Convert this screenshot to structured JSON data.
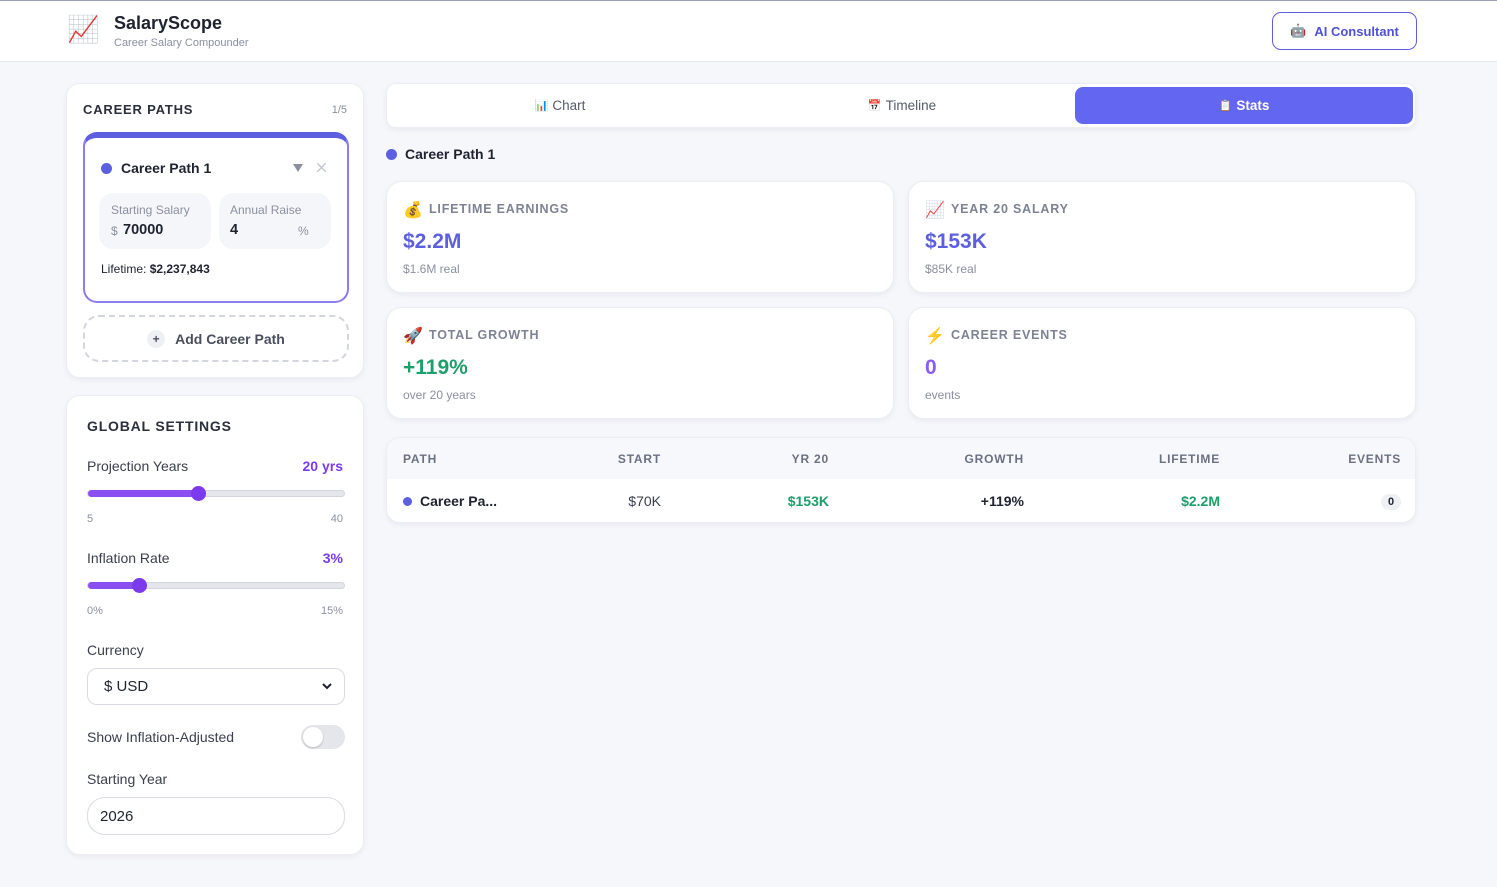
{
  "header": {
    "icon": "📈",
    "title": "SalaryScope",
    "subtitle": "Career Salary Compounder",
    "button_icon": "🤖",
    "button": "AI Consultant"
  },
  "career_paths": {
    "title": "CAREER PATHS",
    "count": "1/5",
    "paths": [
      {
        "name": "Career Path 1",
        "color": "#5b5fe0",
        "starting_salary_label": "Starting Salary",
        "currency": "$",
        "starting_salary": 70000,
        "annual_raise_label": "Annual Raise",
        "annual_raise": 4,
        "percent": "%",
        "lifetime_label": "Lifetime:",
        "lifetime": "$2,237,843"
      }
    ],
    "add_icon": "+",
    "add_button": "Add Career Path"
  },
  "global_settings": {
    "title": "GLOBAL SETTINGS",
    "projection_years": {
      "label": "Projection Years",
      "value_label": "20 yrs",
      "value": 20,
      "min": 5,
      "max": 40
    },
    "inflation_rate": {
      "label": "Inflation Rate",
      "value_label": "3%",
      "value": 3,
      "min": {
        "value": 0,
        "label": "0%"
      },
      "max": {
        "value": 15,
        "label": "15%"
      }
    },
    "currency": {
      "label": "Currency",
      "selected": "$ USD"
    },
    "inflation_adjusted": {
      "label": "Show Inflation-Adjusted",
      "on": false
    },
    "starting_year": {
      "label": "Starting Year",
      "value": 2026
    }
  },
  "tabs": {
    "items": [
      {
        "icon": "📊",
        "label": "Chart"
      },
      {
        "icon": "📅",
        "label": "Timeline"
      },
      {
        "icon": "📋",
        "label": "Stats"
      }
    ],
    "active": 2
  },
  "selected_path": {
    "name": "Career Path 1",
    "color": "#5b5fe0"
  },
  "stats": [
    {
      "icon": "💰",
      "label": "LIFETIME EARNINGS",
      "value": "$2.2M",
      "sub": "$1.6M real",
      "color": "#5b5fe0"
    },
    {
      "icon": "📈",
      "label": "YEAR 20 SALARY",
      "value": "$153K",
      "sub": "$85K real",
      "color": "#5b5fe0"
    },
    {
      "icon": "🚀",
      "label": "TOTAL GROWTH",
      "value": "+119%",
      "sub": "over 20 years",
      "color": "#1e9e6a"
    },
    {
      "icon": "⚡",
      "label": "CAREER EVENTS",
      "value": 0,
      "sub": "events",
      "color": "#8b5cf6"
    }
  ],
  "table": {
    "columns": [
      "PATH",
      "START",
      "YR 20",
      "GROWTH",
      "LIFETIME",
      "EVENTS"
    ],
    "rows": [
      [
        "Career Pa...",
        "$70K",
        "$153K",
        "+119%",
        "$2.2M",
        0
      ]
    ]
  }
}
